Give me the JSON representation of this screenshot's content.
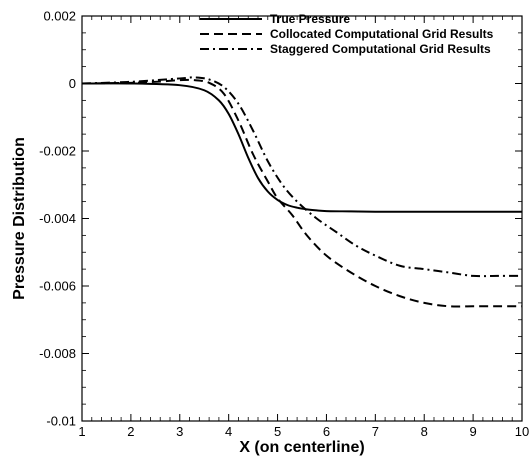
{
  "chart_data": {
    "type": "line",
    "title": "",
    "xlabel": "X (on centerline)",
    "ylabel": "Pressure Distribution",
    "xlim": [
      1,
      10
    ],
    "ylim": [
      -0.01,
      0.002
    ],
    "x_ticks": [
      1,
      2,
      3,
      4,
      5,
      6,
      7,
      8,
      9,
      10
    ],
    "x_tick_labels": [
      "1",
      "2",
      "3",
      "4",
      "5",
      "6",
      "7",
      "8",
      "9",
      "10"
    ],
    "y_ticks": [
      0.002,
      0,
      -0.002,
      -0.004,
      -0.006,
      -0.008,
      -0.01
    ],
    "y_tick_labels": [
      "0.002",
      "0",
      "-0.002",
      "-0.004",
      "-0.006",
      "-0.008",
      "-0.01"
    ],
    "grid": false,
    "legend_position": "top-right",
    "series": [
      {
        "name": "True Pressure",
        "style": "solid",
        "x": [
          1,
          2,
          3,
          3.5,
          3.8,
          4.0,
          4.2,
          4.4,
          4.6,
          4.8,
          5.0,
          5.2,
          5.4,
          5.6,
          5.8,
          6.0,
          6.5,
          7,
          8,
          9,
          10
        ],
        "y": [
          0,
          0,
          -5e-05,
          -0.0002,
          -0.0005,
          -0.0009,
          -0.0015,
          -0.0022,
          -0.0028,
          -0.0032,
          -0.00345,
          -0.0036,
          -0.00368,
          -0.00373,
          -0.00376,
          -0.00378,
          -0.00379,
          -0.0038,
          -0.0038,
          -0.0038,
          -0.0038
        ]
      },
      {
        "name": "Collocated Computational Grid Results",
        "style": "dashed",
        "x": [
          1,
          2,
          2.5,
          3,
          3.3,
          3.6,
          3.9,
          4.2,
          4.5,
          4.8,
          5.0,
          5.3,
          5.6,
          6.0,
          6.5,
          7,
          7.5,
          8,
          8.5,
          9,
          9.5,
          10
        ],
        "y": [
          0,
          2e-05,
          5e-05,
          0.0001,
          0.0001,
          2e-05,
          -0.0003,
          -0.0011,
          -0.0021,
          -0.0029,
          -0.0034,
          -0.0039,
          -0.0045,
          -0.0051,
          -0.0056,
          -0.006,
          -0.0063,
          -0.0065,
          -0.0066,
          -0.0066,
          -0.0066,
          -0.0066
        ]
      },
      {
        "name": "Staggered Computational Grid Results",
        "style": "dashdot",
        "x": [
          1,
          2,
          3,
          3.3,
          3.6,
          3.9,
          4.2,
          4.5,
          4.8,
          5.1,
          5.4,
          5.8,
          6.2,
          6.6,
          7,
          7.5,
          8,
          8.5,
          9,
          9.5,
          10
        ],
        "y": [
          0,
          5e-05,
          0.00015,
          0.00018,
          0.00012,
          -0.0001,
          -0.0006,
          -0.0014,
          -0.0023,
          -0.003,
          -0.0035,
          -0.004,
          -0.0044,
          -0.0048,
          -0.0051,
          -0.0054,
          -0.0055,
          -0.0056,
          -0.0057,
          -0.0057,
          -0.0057
        ]
      }
    ]
  }
}
